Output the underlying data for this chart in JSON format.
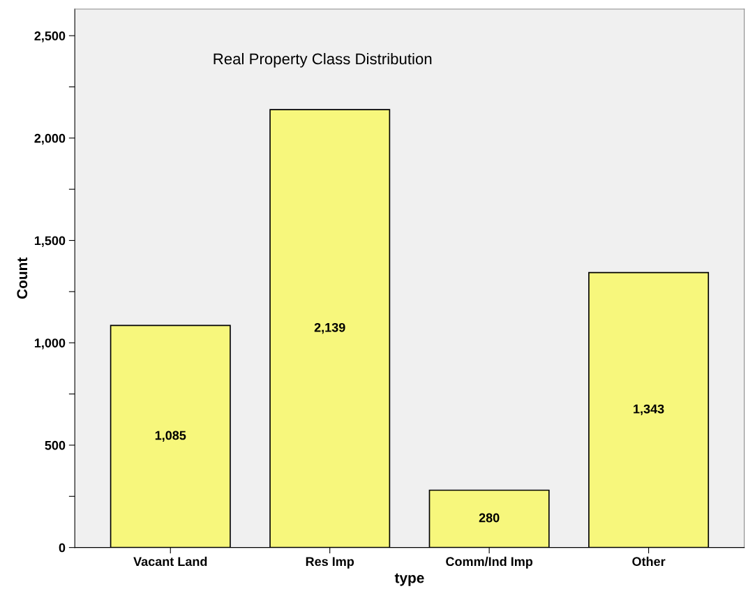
{
  "chart_data": {
    "type": "bar",
    "title": "Real Property Class Distribution",
    "xlabel": "type",
    "ylabel": "Count",
    "categories": [
      "Vacant Land",
      "Res Imp",
      "Comm/Ind Imp",
      "Other"
    ],
    "values": [
      1085,
      2139,
      280,
      1343
    ],
    "value_labels": [
      "1,085",
      "2,139",
      "280",
      "1,343"
    ],
    "color": "#f7f77c",
    "ylim": [
      0,
      2630
    ],
    "yticks": [
      {
        "value": 0,
        "label": "0"
      },
      {
        "value": 250,
        "label": null
      },
      {
        "value": 500,
        "label": "500"
      },
      {
        "value": 750,
        "label": null
      },
      {
        "value": 1000,
        "label": "1,000"
      },
      {
        "value": 1250,
        "label": null
      },
      {
        "value": 1500,
        "label": "1,500"
      },
      {
        "value": 1750,
        "label": null
      },
      {
        "value": 2000,
        "label": "2,000"
      },
      {
        "value": 2250,
        "label": null
      },
      {
        "value": 2500,
        "label": "2,500"
      }
    ],
    "grid": false,
    "legend": false
  }
}
